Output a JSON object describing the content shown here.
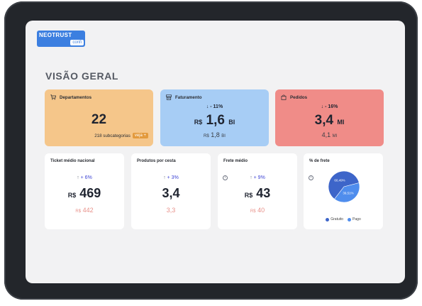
{
  "logo": {
    "main": "NEOTRUST",
    "sub": "confi"
  },
  "page_title": "VISÃO GERAL",
  "colors": {
    "departamentos": "#f5c68a",
    "faturamento": "#a7cdf5",
    "pedidos": "#f08c88",
    "trend_up": "#3e44d4",
    "previous": "#e8918a",
    "pie_gratuito": "#3d65c9",
    "pie_pago": "#4f8ded"
  },
  "kpis": {
    "departamentos": {
      "label": "Departamentos",
      "icon": "cart-icon",
      "value": "22",
      "subtext": "218 subcategorias",
      "link": "veja +"
    },
    "faturamento": {
      "label": "Faturamento",
      "icon": "register-icon",
      "trend_arrow": "↓",
      "trend": "- 11%",
      "currency": "R$",
      "value": "1,6",
      "unit": "BI",
      "prev_currency": "R$",
      "prev_value": "1,8",
      "prev_unit": "BI"
    },
    "pedidos": {
      "label": "Pedidos",
      "icon": "bag-icon",
      "trend_arrow": "↓",
      "trend": "- 16%",
      "value": "3,4",
      "unit": "MI",
      "prev_value": "4,1",
      "prev_unit": "MI"
    }
  },
  "metrics": {
    "ticket": {
      "label": "Ticket médio nacional",
      "trend_arrow": "↑",
      "trend": "+ 6%",
      "currency": "R$",
      "value": "469",
      "prev_currency": "R$",
      "prev_value": "442"
    },
    "produtos": {
      "label": "Produtos por cesta",
      "trend_arrow": "↑",
      "trend": "+ 3%",
      "value": "3,4",
      "prev_value": "3,3"
    },
    "frete": {
      "label": "Frete médio",
      "info": "i",
      "trend_arrow": "↑",
      "trend": "+ 9%",
      "currency": "R$",
      "value": "43",
      "prev_currency": "R$",
      "prev_value": "40"
    },
    "pct_frete": {
      "label": "% de frete",
      "info": "i"
    }
  },
  "chart_data": {
    "type": "pie",
    "title": "% de frete",
    "categories": [
      "Gratuito",
      "Pago"
    ],
    "values": [
      60.49,
      39.51
    ],
    "labels": [
      "60,49%",
      "39,51%"
    ],
    "colors": [
      "#3d65c9",
      "#4f8ded"
    ],
    "legend": "bottom"
  }
}
